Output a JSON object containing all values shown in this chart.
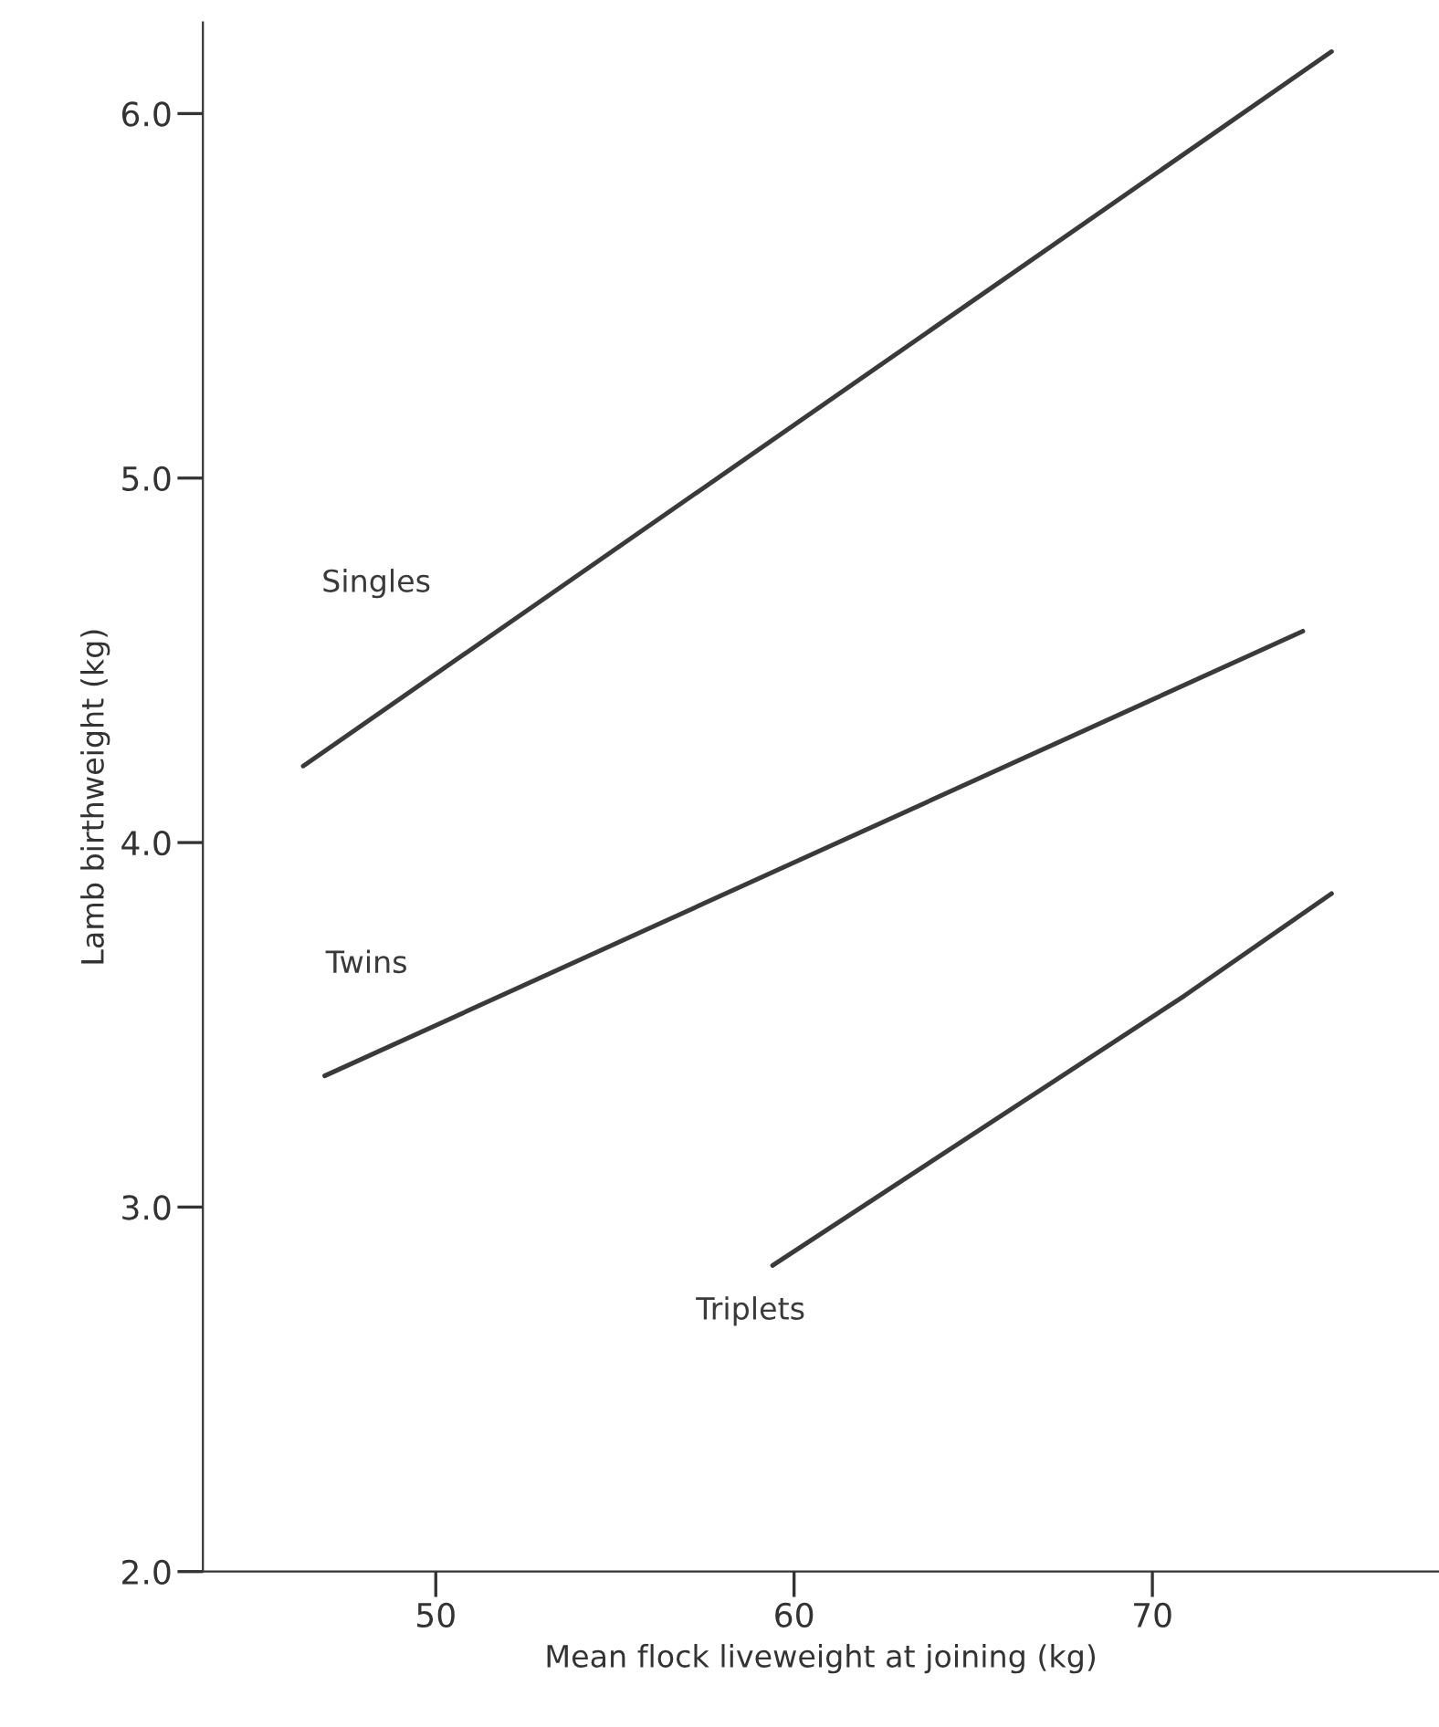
{
  "chart_data": {
    "type": "line",
    "xlabel": "Mean flock liveweight at joining (kg)",
    "ylabel": "Lamb birthweight (kg)",
    "xlim": [
      43.5,
      78
    ],
    "xticks": [
      50,
      60,
      70
    ],
    "ylim": [
      2.0,
      6.25
    ],
    "yticks": [
      {
        "value": 2,
        "label": "2.0"
      },
      {
        "value": 3,
        "label": "3.0"
      },
      {
        "value": 4,
        "label": "4.0"
      },
      {
        "value": 5,
        "label": "5.0"
      },
      {
        "value": 6,
        "label": "6.0"
      }
    ],
    "grid": false,
    "legend": false,
    "marker": "none",
    "line_style": "solid",
    "series": [
      {
        "name": "Singles",
        "color": "#3a3a3a",
        "x": [
          46.3,
          75.0
        ],
        "values": [
          4.21,
          6.17
        ]
      },
      {
        "name": "Twins",
        "color": "#3a3a3a",
        "x": [
          46.9,
          74.2
        ],
        "values": [
          3.36,
          4.58
        ]
      },
      {
        "name": "Triplets",
        "color": "#3a3a3a",
        "x": [
          59.4,
          70.9,
          75.0
        ],
        "values": [
          2.84,
          3.58,
          3.86
        ]
      }
    ]
  }
}
